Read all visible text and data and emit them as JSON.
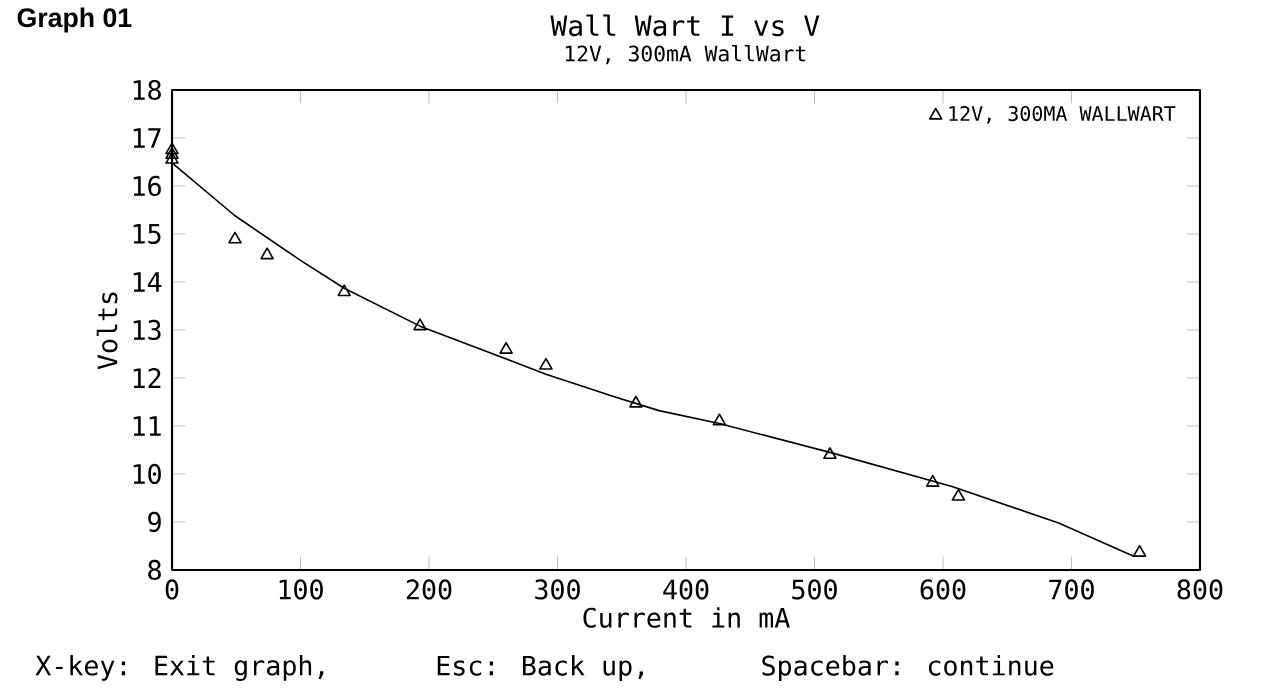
{
  "chart_data": {
    "type": "scatter",
    "title": "Wall Wart I vs V",
    "subtitle": "12V, 300mA WallWart",
    "xlabel": "Current in mA",
    "ylabel": "Volts",
    "annotations": [
      "Graph 01",
      "X-key: Exit graph,",
      "Esc: Back up,",
      "Spacebar: continue"
    ],
    "xlim": [
      0,
      800
    ],
    "xticks": [
      0,
      100,
      200,
      300,
      400,
      500,
      600,
      700,
      800
    ],
    "ylim": [
      8,
      18
    ],
    "yticks": [
      8,
      9,
      10,
      11,
      12,
      13,
      14,
      15,
      16,
      17,
      18
    ],
    "legend": "top right",
    "series": [
      {
        "name": "12V, 300MA WALLWART",
        "marker": "triangle",
        "color": "#000000",
        "x": [
          0,
          0,
          0,
          49,
          74,
          134,
          193,
          260,
          291,
          361,
          426,
          512,
          592,
          612,
          753
        ],
        "values": [
          16.75,
          16.65,
          16.55,
          14.89,
          14.56,
          13.79,
          13.08,
          12.59,
          12.26,
          11.47,
          11.1,
          10.4,
          9.82,
          9.53,
          8.36
        ]
      },
      {
        "type": "line",
        "marker": "none",
        "line_style": "solid",
        "color": "#000000",
        "x": [
          0,
          49,
          100,
          134,
          193,
          291,
          343,
          379,
          426,
          512,
          607,
          690,
          748
        ],
        "values": [
          16.48,
          15.38,
          14.45,
          13.87,
          13.08,
          12.08,
          11.62,
          11.32,
          11.05,
          10.45,
          9.74,
          8.98,
          8.29
        ]
      }
    ]
  }
}
